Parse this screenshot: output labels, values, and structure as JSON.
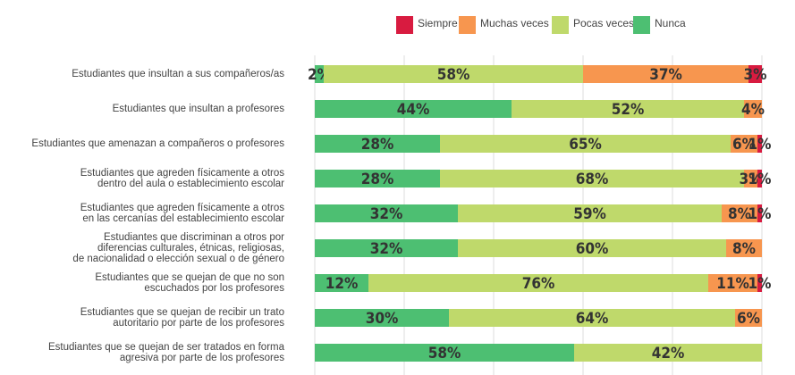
{
  "chart_data": {
    "type": "stacked-barh",
    "categories": [
      "Estudiantes que insultan a sus compañeros/as",
      "Estudiantes que insultan a profesores",
      "Estudiantes que amenazan a compañeros o profesores",
      "Estudiantes que agreden físicamente a otros\ndentro del aula o establecimiento escolar",
      "Estudiantes que agreden físicamente a otros\nen las cercanías del establecimiento escolar",
      "Estudiantes que discriminan a otros por\ndiferencias culturales, étnicas, religiosas,\nde nacionalidad o elección sexual o de género",
      "Estudiantes que se quejan de que no son\nescuchados por los profesores",
      "Estudiantes que se quejan de recibir un trato\nautoritario por parte de los profesores",
      "Estudiantes que se quejan de ser tratados en forma\nagresiva por parte de los profesores"
    ],
    "series": [
      {
        "name": "Siempre",
        "color": "#d81b40",
        "values": [
          3,
          null,
          1,
          1,
          1,
          null,
          1,
          null,
          null
        ],
        "value_labels": [
          "3%",
          null,
          "1%",
          "1%",
          "1%",
          null,
          "1%",
          null,
          null
        ]
      },
      {
        "name": "Muchas veces",
        "color": "#f7964f",
        "values": [
          37,
          4,
          6,
          3,
          8,
          8,
          11,
          6,
          null
        ],
        "value_labels": [
          "37%",
          "4%",
          "6%",
          "3%",
          "8%",
          "8%",
          "11%",
          "6%",
          null
        ]
      },
      {
        "name": "Pocas veces",
        "color": "#bfd96b",
        "values": [
          58,
          52,
          65,
          68,
          59,
          60,
          76,
          64,
          42
        ],
        "value_labels": [
          "58%",
          "52%",
          "65%",
          "68%",
          "59%",
          "60%",
          "76%",
          "64%",
          "42%"
        ]
      },
      {
        "name": "Nunca",
        "color": "#4dbf72",
        "values": [
          2,
          44,
          28,
          28,
          32,
          32,
          12,
          30,
          58
        ],
        "value_labels": [
          "2%",
          "44%",
          "28%",
          "28%",
          "32%",
          "32%",
          "12%",
          "30%",
          "58%"
        ]
      }
    ],
    "xlim": [
      0,
      100
    ],
    "xticks": [
      0,
      20,
      40,
      60,
      80,
      100
    ],
    "grid": true
  }
}
